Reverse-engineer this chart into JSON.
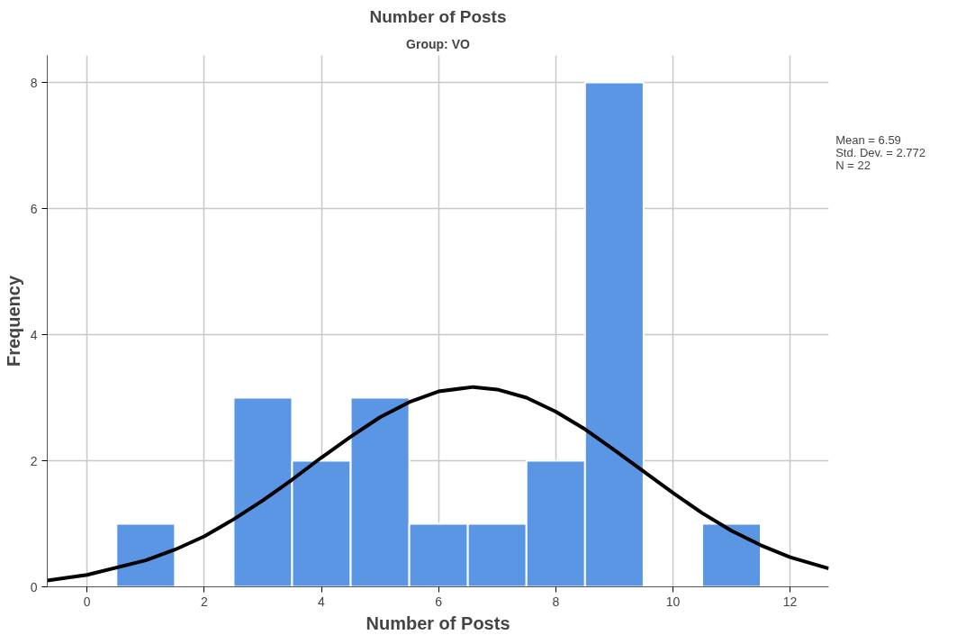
{
  "chart_data": {
    "type": "histogram",
    "title": "Number of Posts",
    "subtitle": "Group: VO",
    "xlabel": "Number of Posts",
    "ylabel": "Frequency",
    "bins": [
      0.5,
      1.5,
      2.5,
      3.5,
      4.5,
      5.5,
      6.5,
      7.5,
      8.5,
      9.5,
      10.5,
      11.5
    ],
    "values": [
      1,
      0,
      3,
      2,
      3,
      1,
      1,
      2,
      8,
      0,
      1
    ],
    "color": "#5a96e3",
    "series": [
      {
        "type": "line",
        "color": "#000000",
        "x": [
          -0.68,
          0,
          1,
          1.5,
          2,
          2.5,
          3,
          3.5,
          4,
          4.5,
          5,
          5.5,
          6,
          6.59,
          7,
          7.5,
          8,
          8.5,
          9,
          9.5,
          10,
          10.5,
          11,
          11.5,
          12,
          12.66
        ],
        "values": [
          0.1,
          0.19,
          0.42,
          0.59,
          0.8,
          1.07,
          1.37,
          1.7,
          2.05,
          2.38,
          2.69,
          2.93,
          3.1,
          3.17,
          3.13,
          3.0,
          2.78,
          2.5,
          2.17,
          1.83,
          1.49,
          1.17,
          0.89,
          0.66,
          0.47,
          0.29
        ]
      }
    ],
    "xlim": [
      -0.68,
      12.66
    ],
    "ylim": [
      0,
      8.43
    ],
    "xticks": [
      0,
      2,
      4,
      6,
      8,
      10,
      12
    ],
    "yticks": [
      0,
      2,
      4,
      6,
      8
    ],
    "grid": true,
    "annotations": [
      "Mean = 6.59",
      "Std. Dev. = 2.772",
      "N = 22"
    ]
  }
}
